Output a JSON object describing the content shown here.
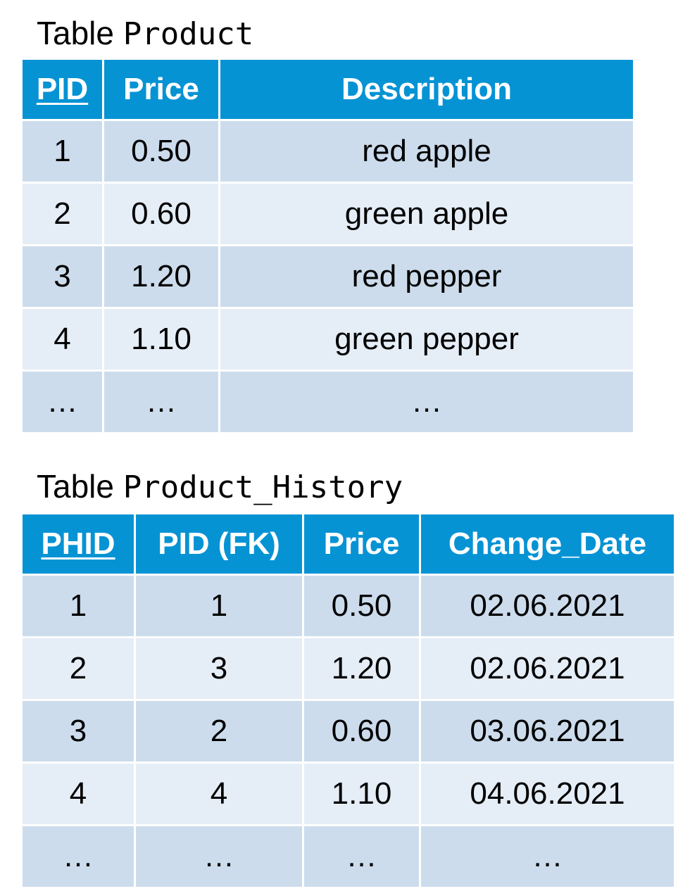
{
  "product": {
    "title_prefix": "Table",
    "title_name": "Product",
    "columns": [
      "PID",
      "Price",
      "Description"
    ],
    "rows": [
      [
        "1",
        "0.50",
        "red apple"
      ],
      [
        "2",
        "0.60",
        "green apple"
      ],
      [
        "3",
        "1.20",
        "red pepper"
      ],
      [
        "4",
        "1.10",
        "green pepper"
      ],
      [
        "…",
        "…",
        "…"
      ]
    ]
  },
  "history": {
    "title_prefix": "Table",
    "title_name": "Product_History",
    "columns": [
      "PHID",
      "PID (FK)",
      "Price",
      "Change_Date"
    ],
    "rows": [
      [
        "1",
        "1",
        "0.50",
        "02.06.2021"
      ],
      [
        "2",
        "3",
        "1.20",
        "02.06.2021"
      ],
      [
        "3",
        "2",
        "0.60",
        "03.06.2021"
      ],
      [
        "4",
        "4",
        "1.10",
        "04.06.2021"
      ],
      [
        "…",
        "…",
        "…",
        "…"
      ]
    ]
  },
  "colors": {
    "header_bg": "#0693d4",
    "row_dark": "#ccdcec",
    "row_light": "#e5edf6"
  }
}
